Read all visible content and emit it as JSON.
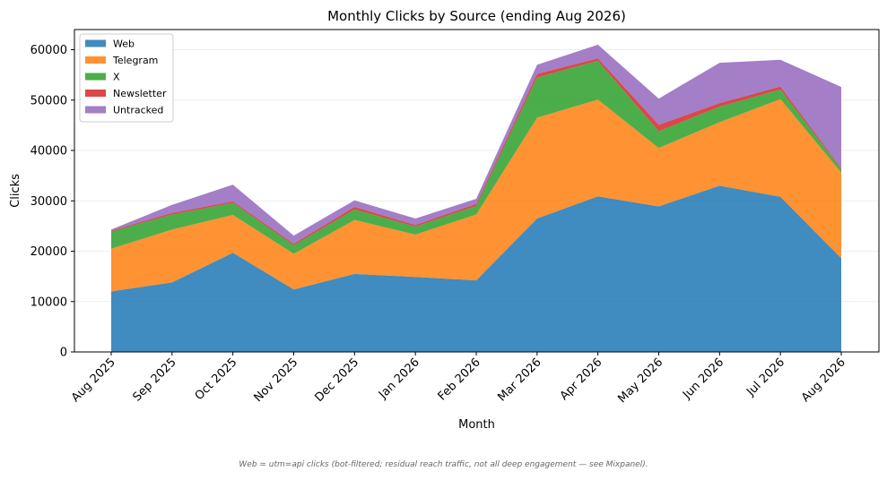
{
  "chart_data": {
    "type": "area",
    "stacked": true,
    "title": "Monthly Clicks by Source (ending Aug 2026)",
    "xlabel": "Month",
    "ylabel": "Clicks",
    "ylim": [
      0,
      64000
    ],
    "yticks": [
      0,
      10000,
      20000,
      30000,
      40000,
      50000,
      60000
    ],
    "grid": "horizontal",
    "legend_position": "top-left",
    "categories": [
      "Aug 2025",
      "Sep 2025",
      "Oct 2025",
      "Nov 2025",
      "Dec 2025",
      "Jan 2026",
      "Feb 2026",
      "Mar 2026",
      "Apr 2026",
      "May 2026",
      "Jun 2026",
      "Jul 2026",
      "Aug 2026"
    ],
    "series": [
      {
        "name": "Web",
        "color": "#1f77b4",
        "values": [
          12000,
          13800,
          19700,
          12400,
          15500,
          14900,
          14200,
          26500,
          30900,
          28900,
          33000,
          30800,
          18600
        ]
      },
      {
        "name": "Telegram",
        "color": "#ff7f0e",
        "values": [
          8500,
          10500,
          7500,
          7100,
          10700,
          8400,
          13100,
          20000,
          19200,
          11600,
          12600,
          19400,
          17000
        ]
      },
      {
        "name": "X",
        "color": "#2ca02c",
        "values": [
          3400,
          3000,
          2400,
          1700,
          2100,
          1600,
          1700,
          8000,
          7700,
          3300,
          3100,
          1900,
          700
        ]
      },
      {
        "name": "Newsletter",
        "color": "#d62728",
        "values": [
          200,
          300,
          300,
          300,
          500,
          300,
          400,
          700,
          500,
          1300,
          700,
          600,
          200
        ]
      },
      {
        "name": "Untracked",
        "color": "#9467bd",
        "values": [
          200,
          1600,
          3300,
          1600,
          1300,
          1300,
          1000,
          1800,
          2700,
          5200,
          8000,
          5300,
          16100
        ]
      }
    ]
  },
  "footnote": "Web = utm=api clicks (bot-filtered; residual reach traffic, not all deep engagement — see Mixpanel)."
}
